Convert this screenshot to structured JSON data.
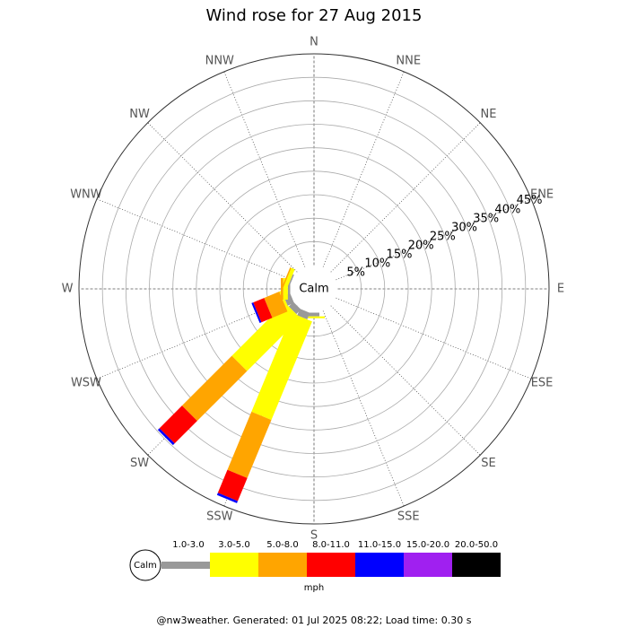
{
  "chart_data": {
    "type": "wind_rose",
    "title": "Wind rose for 27 Aug 2015",
    "categories": [
      "N",
      "NNE",
      "NE",
      "ENE",
      "E",
      "ESE",
      "SE",
      "SSE",
      "S",
      "SSW",
      "SW",
      "WSW",
      "W",
      "WNW",
      "NW",
      "NNW"
    ],
    "series": [
      {
        "name": "1.0-3.0",
        "color": "#999999",
        "values": [
          0,
          0,
          0,
          0,
          0,
          0,
          0,
          0,
          0.8,
          1.5,
          1.4,
          1.5,
          0.5,
          0.3,
          0,
          0
        ]
      },
      {
        "name": "3.0-5.0",
        "color": "#ffff00",
        "values": [
          0,
          0,
          0,
          0,
          0,
          0,
          0,
          0,
          0.4,
          22.7,
          16,
          0.5,
          1,
          0.8,
          0,
          0
        ]
      },
      {
        "name": "5.0-8.0",
        "color": "#ffa500",
        "values": [
          0,
          0,
          0,
          0,
          0,
          0,
          0,
          0,
          0,
          13.4,
          15,
          3.5,
          0.5,
          0.3,
          0,
          0
        ]
      },
      {
        "name": "8.0-11.0",
        "color": "#ff0000",
        "values": [
          0,
          0,
          0,
          0,
          0,
          0,
          0,
          0,
          0,
          5.3,
          6.8,
          2.5,
          0,
          0,
          0,
          0
        ]
      },
      {
        "name": "11.0-15.0",
        "color": "#0000ff",
        "values": [
          0,
          0,
          0,
          0,
          0,
          0,
          0,
          0,
          0,
          0.5,
          0.5,
          0.4,
          0,
          0,
          0,
          0
        ]
      },
      {
        "name": "15.0-20.0",
        "color": "#a020f0",
        "values": [
          0,
          0,
          0,
          0,
          0,
          0,
          0,
          0,
          0,
          0,
          0,
          0,
          0,
          0,
          0,
          0
        ]
      },
      {
        "name": "20.0-50.0",
        "color": "#000000",
        "values": [
          0,
          0,
          0,
          0,
          0,
          0,
          0,
          0,
          0,
          0,
          0,
          0,
          0,
          0,
          0,
          0
        ]
      }
    ],
    "rlim": [
      0,
      45
    ],
    "rticks": [
      {
        "value": 5,
        "label": "5%"
      },
      {
        "value": 10,
        "label": "10%"
      },
      {
        "value": 15,
        "label": "15%"
      },
      {
        "value": 20,
        "label": "20%"
      },
      {
        "value": 25,
        "label": "25%"
      },
      {
        "value": 30,
        "label": "30%"
      },
      {
        "value": 35,
        "label": "35%"
      },
      {
        "value": 40,
        "label": "40%"
      },
      {
        "value": 45,
        "label": "45%"
      }
    ],
    "calm_label": "Calm",
    "legend_unit": "mph",
    "footer": "@nw3weather. Generated: 01 Jul 2025 08:22; Load time: 0.30 s"
  }
}
